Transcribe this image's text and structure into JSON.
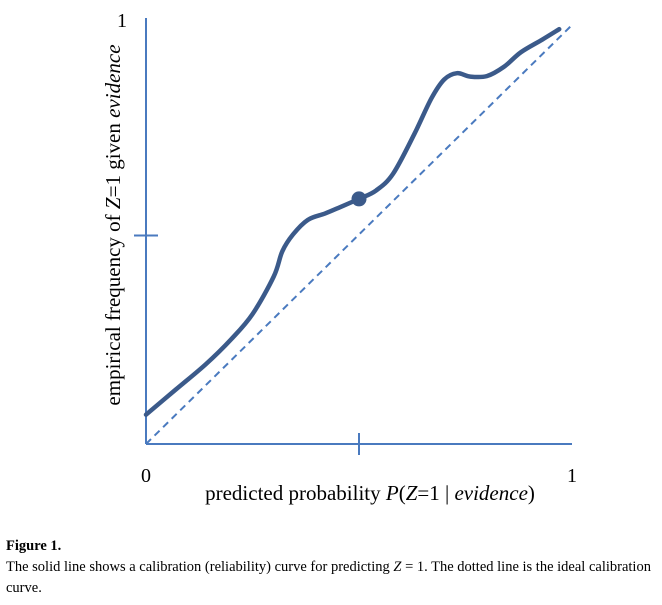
{
  "chart_data": {
    "type": "line",
    "xlabel": {
      "parts": [
        {
          "text": "predicted probability ",
          "italic": false
        },
        {
          "text": "P",
          "italic": true
        },
        {
          "text": "(",
          "italic": false
        },
        {
          "text": "Z",
          "italic": true
        },
        {
          "text": "=1 | ",
          "italic": false
        },
        {
          "text": "evidence",
          "italic": true
        },
        {
          "text": ")",
          "italic": false
        }
      ]
    },
    "ylabel": {
      "parts": [
        {
          "text": "empirical frequency of ",
          "italic": false
        },
        {
          "text": "Z",
          "italic": true
        },
        {
          "text": "=1 given ",
          "italic": false
        },
        {
          "text": "evidence",
          "italic": true
        }
      ]
    },
    "xlim": [
      0,
      1
    ],
    "ylim": [
      0,
      1
    ],
    "x_tick_labels": [
      {
        "value": 0,
        "label": "0"
      },
      {
        "value": 1,
        "label": "1"
      }
    ],
    "y_tick_labels": [
      {
        "value": 1,
        "label": "1"
      }
    ],
    "x_tick_marks": [
      0.5
    ],
    "y_tick_marks": [
      0.5
    ],
    "series": [
      {
        "style": "solid",
        "color": "#3b5a8a",
        "points": [
          [
            0.0,
            0.07
          ],
          [
            0.07,
            0.13
          ],
          [
            0.14,
            0.19
          ],
          [
            0.2,
            0.25
          ],
          [
            0.25,
            0.31
          ],
          [
            0.3,
            0.4
          ],
          [
            0.32,
            0.46
          ],
          [
            0.345,
            0.5
          ],
          [
            0.38,
            0.535
          ],
          [
            0.42,
            0.55
          ],
          [
            0.455,
            0.565
          ],
          [
            0.5,
            0.585
          ],
          [
            0.54,
            0.605
          ],
          [
            0.58,
            0.645
          ],
          [
            0.63,
            0.74
          ],
          [
            0.67,
            0.825
          ],
          [
            0.7,
            0.87
          ],
          [
            0.73,
            0.885
          ],
          [
            0.76,
            0.877
          ],
          [
            0.8,
            0.878
          ],
          [
            0.84,
            0.9
          ],
          [
            0.88,
            0.935
          ],
          [
            0.93,
            0.965
          ],
          [
            0.97,
            0.99
          ]
        ]
      },
      {
        "style": "dashed",
        "color": "#4a7abf",
        "points": [
          [
            0,
            0
          ],
          [
            1,
            1
          ]
        ]
      }
    ],
    "markers": [
      {
        "x": 0.5,
        "y": 0.585,
        "color": "#3b5a8a"
      }
    ],
    "colors": {
      "axis": "#4a7abf",
      "solid_curve": "#3b5a8a",
      "dashed_line": "#4a7abf"
    }
  },
  "caption": {
    "label": "Figure 1.",
    "parts": [
      {
        "text": "The solid line shows a calibration (reliability) curve for predicting ",
        "italic": false
      },
      {
        "text": "Z",
        "italic": true
      },
      {
        "text": " = 1. The dotted line is the ideal calibration curve.",
        "italic": false
      }
    ]
  }
}
